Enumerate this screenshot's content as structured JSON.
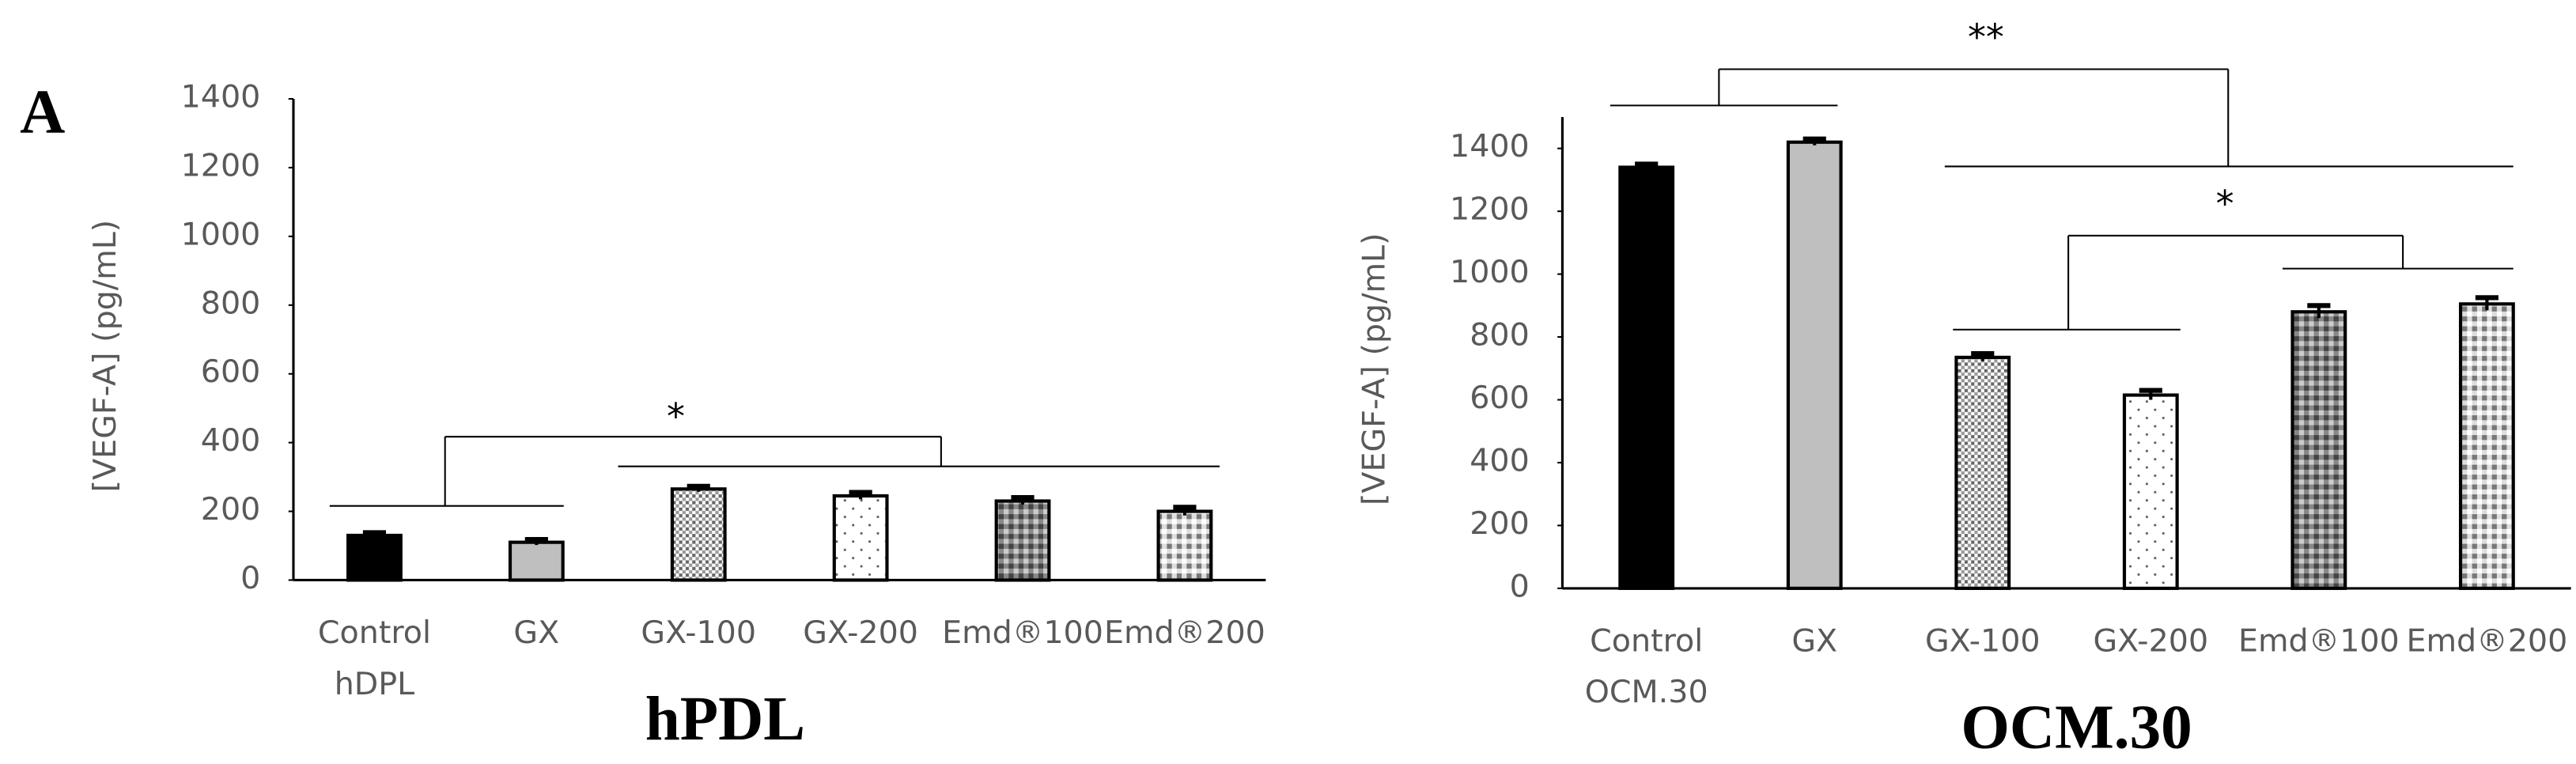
{
  "panel_label": "A",
  "chart_data": [
    {
      "type": "bar",
      "title": "hPDL",
      "y_label": "[VEGF-A] (pg/mL)",
      "categories": [
        "Control hDPL",
        "GX",
        "GX-100",
        "GX-200",
        "Emd®100",
        "Emd®200"
      ],
      "values": [
        130,
        110,
        265,
        245,
        230,
        200
      ],
      "errors": [
        8,
        8,
        8,
        10,
        10,
        12
      ],
      "colors": [
        "#000000",
        "#bfbfbf",
        "url(#fine)",
        "url(#sparse)",
        "url(#checkDark)",
        "url(#checkLight)"
      ],
      "ylim": [
        0,
        1400
      ],
      "yticks": [
        0,
        200,
        400,
        600,
        800,
        1000,
        1200,
        1400
      ],
      "annotations": [
        "*"
      ]
    },
    {
      "type": "bar",
      "title": "OCM.30",
      "y_label": "[VEGF-A] (pg/mL)",
      "categories": [
        "Control OCM.30",
        "GX",
        "GX-100",
        "GX-200",
        "Emd®100",
        "Emd®200"
      ],
      "values": [
        1340,
        1420,
        735,
        615,
        880,
        905
      ],
      "errors": [
        10,
        10,
        12,
        15,
        20,
        20
      ],
      "colors": [
        "#000000",
        "#bfbfbf",
        "url(#fine)",
        "url(#sparse)",
        "url(#checkDark)",
        "url(#checkLight)"
      ],
      "ylim": [
        0,
        1500
      ],
      "yticks": [
        0,
        200,
        400,
        600,
        800,
        1000,
        1200,
        1400
      ],
      "annotations": [
        "**",
        "*"
      ]
    }
  ]
}
